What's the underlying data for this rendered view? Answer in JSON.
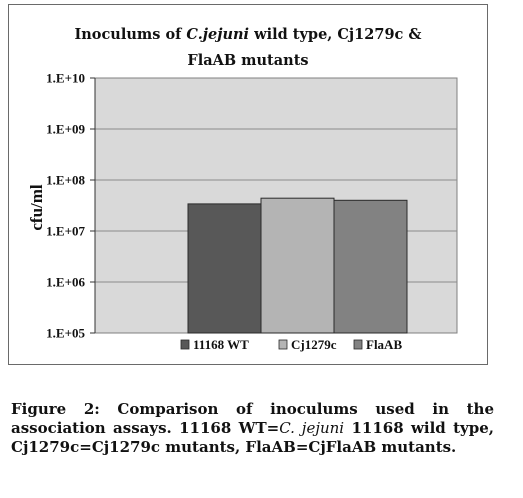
{
  "chart_data": {
    "type": "bar",
    "title_parts": [
      {
        "text": "Inoculums  of ",
        "italic": false
      },
      {
        "text": "C.jejuni",
        "italic": true
      },
      {
        "text": " wild  type, Cj1279c  &",
        "italic": false
      }
    ],
    "title_line2": "FlaAB mutants",
    "ylabel": "cfu/ml",
    "yscale": "log",
    "ylim": [
      100000,
      10000000000
    ],
    "yticks": [
      100000,
      1000000,
      10000000,
      100000000,
      1000000000,
      10000000000
    ],
    "ytick_labels": [
      "1.E+05",
      "1.E+06",
      "1.E+07",
      "1.E+08",
      "1.E+09",
      "1.E+10"
    ],
    "grid": true,
    "legend_position": "bottom",
    "series": [
      {
        "name": "11168 WT",
        "value": 34000000,
        "color": "#585858"
      },
      {
        "name": "Cj1279c",
        "value": 44000000,
        "color": "#b4b4b4"
      },
      {
        "name": "FlaAB",
        "value": 40000000,
        "color": "#828282"
      }
    ]
  },
  "colors": {
    "plot_background": "#d9d9d9",
    "gridline": "#8c8c8c"
  },
  "caption": {
    "lead": "Figure 2: Comparison of inoculums used in the association assays. 11168 WT=",
    "italic": "C. jejuni",
    "tail": " 11168 wild type, Cj1279c=Cj1279c mutants, FlaAB=CjFlaAB mutants."
  }
}
